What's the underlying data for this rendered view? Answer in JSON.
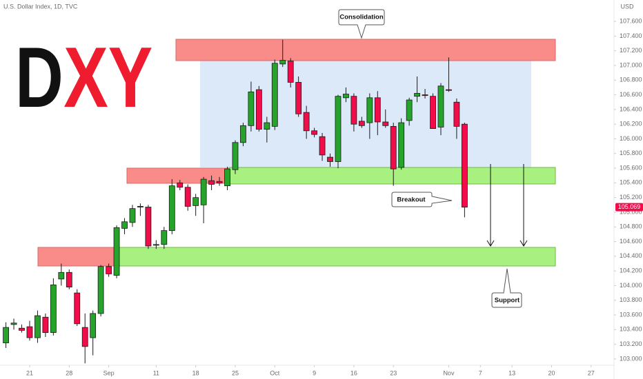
{
  "chart_data": {
    "type": "candlestick",
    "title": "U.S. Dollar Index, 1D, TVC",
    "logo": {
      "dark": "D",
      "red": "XY"
    },
    "currency": "USD",
    "last_price": 105.069,
    "annotations": {
      "consolidation": "Consolidation",
      "breakout": "Breakout",
      "support": "Support"
    },
    "up_color": "#26a32a",
    "down_color": "#f20d4a",
    "xlim": [
      -0.75,
      76.9
    ],
    "xticks": [
      {
        "value": 3,
        "label": "21"
      },
      {
        "value": 8,
        "label": "28"
      },
      {
        "value": 13,
        "label": "Sep"
      },
      {
        "value": 19,
        "label": "11"
      },
      {
        "value": 24,
        "label": "18"
      },
      {
        "value": 29,
        "label": "25"
      },
      {
        "value": 34,
        "label": "Oct"
      },
      {
        "value": 39,
        "label": "9"
      },
      {
        "value": 44,
        "label": "16"
      },
      {
        "value": 49,
        "label": "23"
      },
      {
        "value": 56,
        "label": "Nov"
      },
      {
        "value": 60,
        "label": "7"
      },
      {
        "value": 64,
        "label": "13"
      },
      {
        "value": 69,
        "label": "20"
      },
      {
        "value": 74,
        "label": "27"
      }
    ],
    "ylim": [
      102.915,
      107.892
    ],
    "yticks": [
      {
        "value": 103.0,
        "label": "103.000"
      },
      {
        "value": 103.2,
        "label": "103.200"
      },
      {
        "value": 103.4,
        "label": "103.400"
      },
      {
        "value": 103.6,
        "label": "103.600"
      },
      {
        "value": 103.8,
        "label": "103.800"
      },
      {
        "value": 104.0,
        "label": "104.000"
      },
      {
        "value": 104.2,
        "label": "104.200"
      },
      {
        "value": 104.4,
        "label": "104.400"
      },
      {
        "value": 104.6,
        "label": "104.600"
      },
      {
        "value": 104.8,
        "label": "104.800"
      },
      {
        "value": 105.0,
        "label": "105.000"
      },
      {
        "value": 105.2,
        "label": "105.200"
      },
      {
        "value": 105.4,
        "label": "105.400"
      },
      {
        "value": 105.6,
        "label": "105.600"
      },
      {
        "value": 105.8,
        "label": "105.800"
      },
      {
        "value": 106.0,
        "label": "106.000"
      },
      {
        "value": 106.2,
        "label": "106.200"
      },
      {
        "value": 106.4,
        "label": "106.400"
      },
      {
        "value": 106.6,
        "label": "106.600"
      },
      {
        "value": 106.8,
        "label": "106.800"
      },
      {
        "value": 107.0,
        "label": "107.000"
      },
      {
        "value": 107.2,
        "label": "107.200"
      },
      {
        "value": 107.4,
        "label": "107.400"
      },
      {
        "value": 107.6,
        "label": "107.600"
      }
    ],
    "open": [
      103.22,
      103.47,
      103.42,
      103.44,
      103.29,
      103.57,
      103.36,
      104.09,
      104.18,
      103.9,
      103.43,
      103.29,
      103.62,
      104.26,
      104.14,
      104.78,
      104.86,
      105.07,
      105.07,
      104.56,
      104.56,
      104.75,
      105.4,
      105.34,
      105.09,
      105.1,
      105.43,
      105.42,
      105.36,
      105.58,
      105.95,
      106.18,
      106.67,
      106.13,
      106.17,
      107.02,
      107.06,
      106.77,
      106.36,
      106.11,
      106.03,
      105.75,
      105.69,
      106.56,
      106.58,
      106.24,
      106.22,
      106.56,
      106.23,
      106.17,
      105.61,
      106.25,
      106.58,
      106.6,
      106.58,
      106.16,
      106.67,
      106.5,
      106.2
    ],
    "high": [
      103.5,
      103.55,
      103.47,
      103.52,
      103.66,
      103.62,
      104.1,
      104.3,
      104.22,
      103.95,
      103.62,
      103.66,
      104.28,
      104.3,
      104.82,
      104.92,
      105.1,
      105.12,
      105.1,
      104.62,
      104.8,
      105.45,
      105.44,
      105.38,
      105.25,
      105.48,
      105.5,
      105.48,
      105.62,
      105.98,
      106.22,
      106.78,
      106.72,
      106.3,
      107.08,
      107.35,
      107.1,
      106.85,
      106.45,
      106.15,
      106.08,
      105.8,
      106.6,
      106.7,
      106.62,
      106.3,
      106.62,
      106.65,
      106.4,
      106.22,
      106.28,
      106.56,
      106.85,
      106.68,
      106.62,
      106.76,
      107.11,
      106.55,
      106.22
    ],
    "low": [
      103.15,
      103.4,
      103.36,
      103.25,
      103.22,
      103.3,
      103.32,
      104.0,
      103.95,
      103.45,
      102.94,
      103.05,
      103.58,
      104.12,
      104.1,
      104.7,
      104.8,
      104.95,
      104.5,
      104.5,
      104.5,
      104.7,
      105.3,
      105.02,
      104.95,
      104.85,
      105.3,
      105.36,
      105.3,
      105.52,
      105.9,
      106.1,
      106.1,
      105.95,
      106.12,
      106.98,
      106.7,
      106.3,
      106.0,
      106.02,
      105.7,
      105.62,
      105.6,
      106.5,
      106.1,
      106.15,
      106.0,
      106.05,
      106.15,
      105.36,
      105.58,
      106.18,
      106.5,
      106.55,
      106.14,
      106.05,
      106.64,
      106.0,
      104.93
    ],
    "close": [
      103.43,
      103.49,
      103.39,
      103.29,
      103.59,
      103.36,
      104.01,
      104.18,
      103.98,
      103.48,
      103.17,
      103.62,
      104.26,
      104.16,
      104.79,
      104.87,
      105.05,
      105.08,
      104.54,
      104.55,
      104.75,
      105.36,
      105.34,
      105.08,
      105.2,
      105.45,
      105.38,
      105.4,
      105.59,
      105.95,
      106.18,
      106.64,
      106.13,
      106.22,
      107.03,
      107.07,
      106.77,
      106.34,
      106.11,
      106.06,
      105.78,
      105.69,
      106.58,
      106.61,
      106.2,
      106.18,
      106.56,
      106.23,
      106.18,
      105.59,
      106.22,
      106.53,
      106.62,
      106.59,
      106.14,
      106.72,
      106.66,
      106.17,
      105.069
    ]
  }
}
